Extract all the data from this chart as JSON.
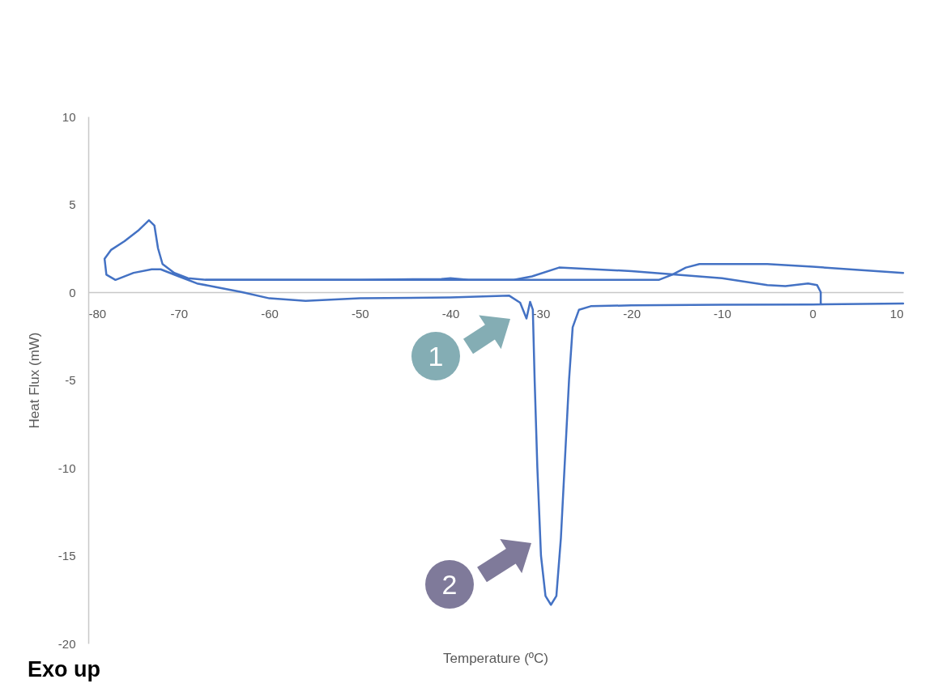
{
  "chart_data": {
    "type": "line",
    "xlabel": "Temperature (ºC)",
    "ylabel": "Heat Flux (mW)",
    "xlim": [
      -80,
      10
    ],
    "xticks": [
      -80,
      -70,
      -60,
      -50,
      -40,
      -30,
      -20,
      -10,
      0,
      10
    ],
    "ylim": [
      -20,
      10
    ],
    "yticks": [
      -20,
      -15,
      -10,
      -5,
      0,
      5,
      10
    ],
    "grid": false,
    "legend": false,
    "marker": "none",
    "line_style": "solid",
    "series": [
      {
        "color": "#4472c4",
        "x": [
          10,
          0,
          -10,
          -20,
          -24.5,
          -25.8,
          -26.5,
          -26.9,
          -27.3,
          -27.8,
          -28.3,
          -28.9,
          -29.5,
          -30,
          -30.4,
          -30.7,
          -30.9,
          -31.2,
          -31.6,
          -32.3,
          -33.5,
          -40,
          -50,
          -56,
          -60,
          -63,
          -66,
          -68,
          -70,
          -72,
          -73,
          -75,
          -77,
          -78,
          -78.2,
          -77.5,
          -76,
          -74.5,
          -73.3,
          -72.7,
          -72.3,
          -71.8,
          -70.5,
          -69,
          -67,
          -60,
          -50,
          -41,
          -40,
          -38,
          -33,
          -31,
          -28,
          -20,
          -10,
          -5,
          -3,
          -0.5,
          0.5,
          0.9,
          0.9
        ],
        "values": [
          -0.65,
          -0.7,
          -0.72,
          -0.75,
          -0.8,
          -1,
          -2,
          -5,
          -9,
          -14,
          -17.3,
          -17.8,
          -17.3,
          -15,
          -10,
          -5,
          -1,
          -0.55,
          -1.5,
          -0.6,
          -0.2,
          -0.3,
          -0.35,
          -0.5,
          -0.35,
          0,
          0.3,
          0.5,
          0.9,
          1.3,
          1.3,
          1.1,
          0.7,
          1,
          1.9,
          2.4,
          2.9,
          3.5,
          4.1,
          3.8,
          2.5,
          1.6,
          1.1,
          0.8,
          0.7,
          0.7,
          0.7,
          0.75,
          0.8,
          0.7,
          0.7,
          0.9,
          1.4,
          1.2,
          0.8,
          0.4,
          0.35,
          0.5,
          0.4,
          0,
          -0.65
        ]
      },
      {
        "color": "#4472c4",
        "x": [
          -67,
          -50,
          -33,
          -20,
          -17,
          -15.5,
          -14,
          -12.5,
          -5,
          0,
          10
        ],
        "values": [
          0.7,
          0.7,
          0.7,
          0.7,
          0.7,
          1,
          1.4,
          1.6,
          1.6,
          1.45,
          1.1
        ]
      }
    ],
    "annotations": [
      "1",
      "2",
      "Exo up"
    ]
  }
}
